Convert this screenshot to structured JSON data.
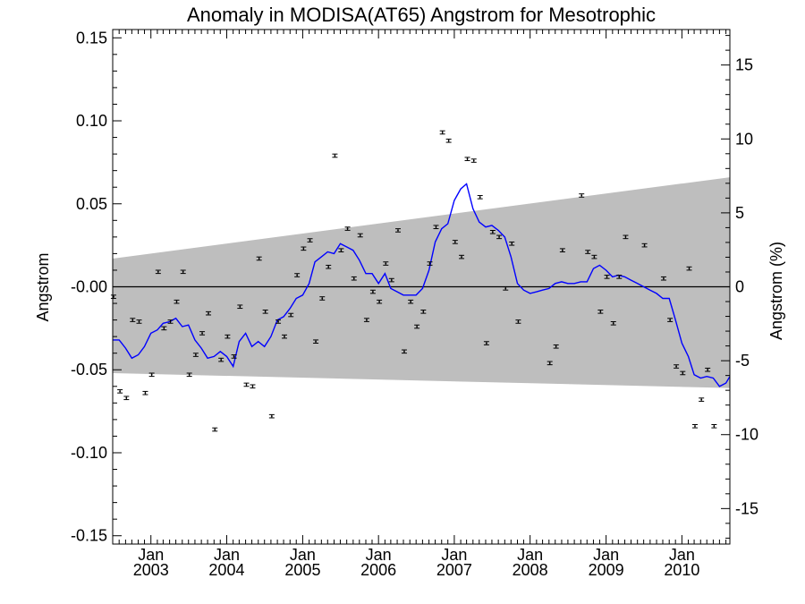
{
  "chart_data": {
    "type": "scatter",
    "title": "Anomaly in MODISA(AT65) Angstrom for Mesotrophic",
    "ylabel": "Angstrom",
    "ylabel_right": "Angstrom (%)",
    "xlim": [
      "2002-07-01",
      "2010-08-20"
    ],
    "ylim": [
      -0.155,
      0.155
    ],
    "ylim_right": [
      -17.4,
      17.4
    ],
    "y_ticks": [
      {
        "value": 0.15,
        "label": "0.15"
      },
      {
        "value": 0.1,
        "label": "0.10"
      },
      {
        "value": 0.05,
        "label": "0.05"
      },
      {
        "value": 0.0,
        "label": "-0.00"
      },
      {
        "value": -0.05,
        "label": "-0.05"
      },
      {
        "value": -0.1,
        "label": "-0.10"
      },
      {
        "value": -0.15,
        "label": "-0.15"
      }
    ],
    "y_ticks_right": [
      {
        "value": 15,
        "label": "15"
      },
      {
        "value": 10,
        "label": "10"
      },
      {
        "value": 5,
        "label": "5"
      },
      {
        "value": 0,
        "label": "0"
      },
      {
        "value": -5,
        "label": "-5"
      },
      {
        "value": -10,
        "label": "-10"
      },
      {
        "value": -15,
        "label": "-15"
      }
    ],
    "x_ticks": [
      {
        "date": "2003-01-01",
        "month": "Jan",
        "year": "2003"
      },
      {
        "date": "2004-01-01",
        "month": "Jan",
        "year": "2004"
      },
      {
        "date": "2005-01-01",
        "month": "Jan",
        "year": "2005"
      },
      {
        "date": "2006-01-01",
        "month": "Jan",
        "year": "2006"
      },
      {
        "date": "2007-01-01",
        "month": "Jan",
        "year": "2007"
      },
      {
        "date": "2008-01-01",
        "month": "Jan",
        "year": "2008"
      },
      {
        "date": "2009-01-01",
        "month": "Jan",
        "year": "2009"
      },
      {
        "date": "2010-01-01",
        "month": "Jan",
        "year": "2010"
      }
    ],
    "band": {
      "start": {
        "date": "2002-07-01",
        "upper": 0.017,
        "lower": -0.052
      },
      "end": {
        "date": "2010-08-20",
        "upper": 0.066,
        "lower": -0.061
      },
      "color": "#bebebe"
    },
    "zero_line": 0.0,
    "points": [
      {
        "date": "2002-07-05",
        "y": -0.006
      },
      {
        "date": "2002-08-05",
        "y": -0.063
      },
      {
        "date": "2002-09-05",
        "y": -0.067
      },
      {
        "date": "2002-10-05",
        "y": -0.02
      },
      {
        "date": "2002-11-05",
        "y": -0.021
      },
      {
        "date": "2002-12-05",
        "y": -0.064
      },
      {
        "date": "2003-01-05",
        "y": -0.053
      },
      {
        "date": "2003-02-05",
        "y": 0.009
      },
      {
        "date": "2003-03-05",
        "y": -0.025
      },
      {
        "date": "2003-04-05",
        "y": -0.021
      },
      {
        "date": "2003-05-05",
        "y": -0.009
      },
      {
        "date": "2003-06-05",
        "y": 0.009
      },
      {
        "date": "2003-07-05",
        "y": -0.053
      },
      {
        "date": "2003-08-05",
        "y": -0.041
      },
      {
        "date": "2003-09-05",
        "y": -0.028
      },
      {
        "date": "2003-10-05",
        "y": -0.016
      },
      {
        "date": "2003-11-05",
        "y": -0.086
      },
      {
        "date": "2003-12-05",
        "y": -0.044
      },
      {
        "date": "2004-01-05",
        "y": -0.03
      },
      {
        "date": "2004-02-05",
        "y": -0.042
      },
      {
        "date": "2004-03-05",
        "y": -0.012
      },
      {
        "date": "2004-04-05",
        "y": -0.059
      },
      {
        "date": "2004-05-05",
        "y": -0.06
      },
      {
        "date": "2004-06-05",
        "y": 0.017
      },
      {
        "date": "2004-07-05",
        "y": -0.015
      },
      {
        "date": "2004-08-05",
        "y": -0.078
      },
      {
        "date": "2004-09-05",
        "y": -0.021
      },
      {
        "date": "2004-10-05",
        "y": -0.03
      },
      {
        "date": "2004-11-05",
        "y": -0.017
      },
      {
        "date": "2004-12-05",
        "y": 0.007
      },
      {
        "date": "2005-01-05",
        "y": 0.023
      },
      {
        "date": "2005-02-05",
        "y": 0.028
      },
      {
        "date": "2005-03-05",
        "y": -0.033
      },
      {
        "date": "2005-04-05",
        "y": -0.007
      },
      {
        "date": "2005-05-05",
        "y": 0.012
      },
      {
        "date": "2005-06-05",
        "y": 0.079
      },
      {
        "date": "2005-07-05",
        "y": 0.022
      },
      {
        "date": "2005-08-05",
        "y": 0.035
      },
      {
        "date": "2005-09-05",
        "y": 0.005
      },
      {
        "date": "2005-10-05",
        "y": 0.031
      },
      {
        "date": "2005-11-05",
        "y": -0.02
      },
      {
        "date": "2005-12-05",
        "y": -0.003
      },
      {
        "date": "2006-01-05",
        "y": -0.009
      },
      {
        "date": "2006-02-05",
        "y": 0.014
      },
      {
        "date": "2006-03-05",
        "y": 0.004
      },
      {
        "date": "2006-04-05",
        "y": 0.034
      },
      {
        "date": "2006-05-05",
        "y": -0.039
      },
      {
        "date": "2006-06-05",
        "y": -0.009
      },
      {
        "date": "2006-07-05",
        "y": -0.024
      },
      {
        "date": "2006-08-05",
        "y": -0.015
      },
      {
        "date": "2006-09-05",
        "y": 0.014
      },
      {
        "date": "2006-10-05",
        "y": 0.036
      },
      {
        "date": "2006-11-05",
        "y": 0.093
      },
      {
        "date": "2006-12-05",
        "y": 0.088
      },
      {
        "date": "2007-01-05",
        "y": 0.027
      },
      {
        "date": "2007-02-05",
        "y": 0.018
      },
      {
        "date": "2007-03-05",
        "y": 0.077
      },
      {
        "date": "2007-04-05",
        "y": 0.076
      },
      {
        "date": "2007-05-05",
        "y": 0.054
      },
      {
        "date": "2007-06-05",
        "y": -0.034
      },
      {
        "date": "2007-07-05",
        "y": 0.033
      },
      {
        "date": "2007-08-05",
        "y": 0.03
      },
      {
        "date": "2007-09-05",
        "y": -0.001
      },
      {
        "date": "2007-10-05",
        "y": 0.026
      },
      {
        "date": "2007-11-05",
        "y": -0.021
      },
      {
        "date": "2008-04-05",
        "y": -0.046
      },
      {
        "date": "2008-05-05",
        "y": -0.036
      },
      {
        "date": "2008-06-05",
        "y": 0.022
      },
      {
        "date": "2008-09-05",
        "y": 0.055
      },
      {
        "date": "2008-10-05",
        "y": 0.021
      },
      {
        "date": "2008-11-05",
        "y": 0.018
      },
      {
        "date": "2008-12-05",
        "y": -0.015
      },
      {
        "date": "2009-01-05",
        "y": 0.006
      },
      {
        "date": "2009-02-05",
        "y": -0.022
      },
      {
        "date": "2009-03-05",
        "y": 0.006
      },
      {
        "date": "2009-04-05",
        "y": 0.03
      },
      {
        "date": "2009-07-05",
        "y": 0.025
      },
      {
        "date": "2009-10-05",
        "y": 0.005
      },
      {
        "date": "2009-11-05",
        "y": -0.02
      },
      {
        "date": "2009-12-05",
        "y": -0.048
      },
      {
        "date": "2010-01-05",
        "y": -0.052
      },
      {
        "date": "2010-02-05",
        "y": 0.011
      },
      {
        "date": "2010-03-05",
        "y": -0.084
      },
      {
        "date": "2010-04-05",
        "y": -0.068
      },
      {
        "date": "2010-05-05",
        "y": -0.05
      },
      {
        "date": "2010-06-05",
        "y": -0.084
      }
    ],
    "smoothed_series": {
      "color": "#0000ff",
      "points": [
        {
          "date": "2002-07-01",
          "y": -0.032
        },
        {
          "date": "2002-08-01",
          "y": -0.032
        },
        {
          "date": "2002-09-01",
          "y": -0.037
        },
        {
          "date": "2002-10-01",
          "y": -0.043
        },
        {
          "date": "2002-11-01",
          "y": -0.041
        },
        {
          "date": "2002-12-01",
          "y": -0.036
        },
        {
          "date": "2003-01-01",
          "y": -0.028
        },
        {
          "date": "2003-02-01",
          "y": -0.026
        },
        {
          "date": "2003-03-01",
          "y": -0.022
        },
        {
          "date": "2003-04-01",
          "y": -0.021
        },
        {
          "date": "2003-05-01",
          "y": -0.019
        },
        {
          "date": "2003-06-01",
          "y": -0.024
        },
        {
          "date": "2003-07-01",
          "y": -0.023
        },
        {
          "date": "2003-08-01",
          "y": -0.032
        },
        {
          "date": "2003-09-01",
          "y": -0.037
        },
        {
          "date": "2003-10-01",
          "y": -0.043
        },
        {
          "date": "2003-11-01",
          "y": -0.042
        },
        {
          "date": "2003-12-01",
          "y": -0.039
        },
        {
          "date": "2004-01-01",
          "y": -0.042
        },
        {
          "date": "2004-02-01",
          "y": -0.048
        },
        {
          "date": "2004-03-01",
          "y": -0.033
        },
        {
          "date": "2004-04-01",
          "y": -0.028
        },
        {
          "date": "2004-05-01",
          "y": -0.036
        },
        {
          "date": "2004-06-01",
          "y": -0.033
        },
        {
          "date": "2004-07-01",
          "y": -0.036
        },
        {
          "date": "2004-08-01",
          "y": -0.03
        },
        {
          "date": "2004-09-01",
          "y": -0.02
        },
        {
          "date": "2004-10-01",
          "y": -0.018
        },
        {
          "date": "2004-11-01",
          "y": -0.013
        },
        {
          "date": "2004-12-01",
          "y": -0.007
        },
        {
          "date": "2005-01-01",
          "y": -0.005
        },
        {
          "date": "2005-02-01",
          "y": 0.002
        },
        {
          "date": "2005-03-01",
          "y": 0.015
        },
        {
          "date": "2005-04-01",
          "y": 0.018
        },
        {
          "date": "2005-05-01",
          "y": 0.021
        },
        {
          "date": "2005-06-01",
          "y": 0.02
        },
        {
          "date": "2005-07-01",
          "y": 0.026
        },
        {
          "date": "2005-08-01",
          "y": 0.024
        },
        {
          "date": "2005-09-01",
          "y": 0.022
        },
        {
          "date": "2005-10-01",
          "y": 0.016
        },
        {
          "date": "2005-11-01",
          "y": 0.008
        },
        {
          "date": "2005-12-01",
          "y": 0.008
        },
        {
          "date": "2006-01-01",
          "y": 0.002
        },
        {
          "date": "2006-02-01",
          "y": 0.008
        },
        {
          "date": "2006-03-01",
          "y": -0.001
        },
        {
          "date": "2006-04-01",
          "y": -0.003
        },
        {
          "date": "2006-05-01",
          "y": -0.005
        },
        {
          "date": "2006-06-01",
          "y": -0.005
        },
        {
          "date": "2006-07-01",
          "y": -0.005
        },
        {
          "date": "2006-08-01",
          "y": -0.001
        },
        {
          "date": "2006-09-01",
          "y": 0.01
        },
        {
          "date": "2006-10-01",
          "y": 0.027
        },
        {
          "date": "2006-11-01",
          "y": 0.035
        },
        {
          "date": "2006-12-01",
          "y": 0.038
        },
        {
          "date": "2007-01-01",
          "y": 0.052
        },
        {
          "date": "2007-02-01",
          "y": 0.059
        },
        {
          "date": "2007-03-01",
          "y": 0.062
        },
        {
          "date": "2007-04-01",
          "y": 0.047
        },
        {
          "date": "2007-05-01",
          "y": 0.039
        },
        {
          "date": "2007-06-01",
          "y": 0.036
        },
        {
          "date": "2007-07-01",
          "y": 0.037
        },
        {
          "date": "2007-08-01",
          "y": 0.034
        },
        {
          "date": "2007-09-01",
          "y": 0.03
        },
        {
          "date": "2007-10-01",
          "y": 0.018
        },
        {
          "date": "2007-11-01",
          "y": 0.002
        },
        {
          "date": "2007-12-01",
          "y": -0.002
        },
        {
          "date": "2008-01-01",
          "y": -0.004
        },
        {
          "date": "2008-02-01",
          "y": -0.003
        },
        {
          "date": "2008-03-01",
          "y": -0.002
        },
        {
          "date": "2008-04-01",
          "y": -0.001
        },
        {
          "date": "2008-05-01",
          "y": 0.002
        },
        {
          "date": "2008-06-01",
          "y": 0.003
        },
        {
          "date": "2008-07-01",
          "y": 0.002
        },
        {
          "date": "2008-08-01",
          "y": 0.002
        },
        {
          "date": "2008-09-01",
          "y": 0.003
        },
        {
          "date": "2008-10-01",
          "y": 0.003
        },
        {
          "date": "2008-11-01",
          "y": 0.011
        },
        {
          "date": "2008-12-01",
          "y": 0.013
        },
        {
          "date": "2009-01-01",
          "y": 0.01
        },
        {
          "date": "2009-02-01",
          "y": 0.006
        },
        {
          "date": "2009-03-01",
          "y": 0.007
        },
        {
          "date": "2009-04-01",
          "y": 0.006
        },
        {
          "date": "2009-05-01",
          "y": 0.004
        },
        {
          "date": "2009-06-01",
          "y": 0.002
        },
        {
          "date": "2009-07-01",
          "y": 0.0
        },
        {
          "date": "2009-08-01",
          "y": -0.002
        },
        {
          "date": "2009-09-01",
          "y": -0.004
        },
        {
          "date": "2009-10-01",
          "y": -0.007
        },
        {
          "date": "2009-11-01",
          "y": -0.007
        },
        {
          "date": "2009-12-01",
          "y": -0.02
        },
        {
          "date": "2010-01-01",
          "y": -0.034
        },
        {
          "date": "2010-02-01",
          "y": -0.042
        },
        {
          "date": "2010-03-01",
          "y": -0.053
        },
        {
          "date": "2010-04-01",
          "y": -0.055
        },
        {
          "date": "2010-05-01",
          "y": -0.054
        },
        {
          "date": "2010-06-01",
          "y": -0.055
        },
        {
          "date": "2010-07-01",
          "y": -0.06
        },
        {
          "date": "2010-08-01",
          "y": -0.058
        },
        {
          "date": "2010-08-20",
          "y": -0.054
        }
      ]
    }
  }
}
